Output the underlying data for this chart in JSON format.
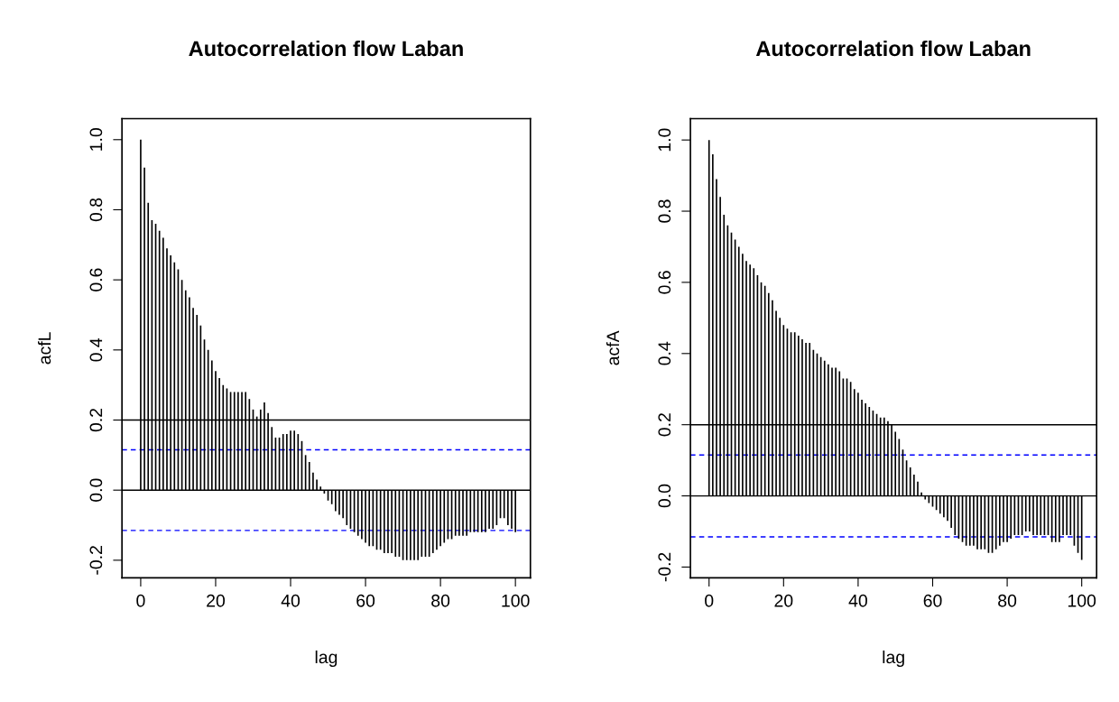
{
  "chart_data": [
    {
      "type": "bar",
      "title": "Autocorrelation flow Laban",
      "xlabel": "lag",
      "ylabel": "acfL",
      "x": [
        0,
        1,
        2,
        3,
        4,
        5,
        6,
        7,
        8,
        9,
        10,
        11,
        12,
        13,
        14,
        15,
        16,
        17,
        18,
        19,
        20,
        21,
        22,
        23,
        24,
        25,
        26,
        27,
        28,
        29,
        30,
        31,
        32,
        33,
        34,
        35,
        36,
        37,
        38,
        39,
        40,
        41,
        42,
        43,
        44,
        45,
        46,
        47,
        48,
        49,
        50,
        51,
        52,
        53,
        54,
        55,
        56,
        57,
        58,
        59,
        60,
        61,
        62,
        63,
        64,
        65,
        66,
        67,
        68,
        69,
        70,
        71,
        72,
        73,
        74,
        75,
        76,
        77,
        78,
        79,
        80,
        81,
        82,
        83,
        84,
        85,
        86,
        87,
        88,
        89,
        90,
        91,
        92,
        93,
        94,
        95,
        96,
        97,
        98,
        99,
        100
      ],
      "series": [
        {
          "color": "#000000",
          "values": [
            1.0,
            0.92,
            0.82,
            0.77,
            0.76,
            0.74,
            0.72,
            0.69,
            0.67,
            0.65,
            0.63,
            0.6,
            0.57,
            0.55,
            0.52,
            0.5,
            0.47,
            0.43,
            0.4,
            0.37,
            0.34,
            0.32,
            0.3,
            0.29,
            0.28,
            0.28,
            0.28,
            0.28,
            0.28,
            0.26,
            0.23,
            0.21,
            0.23,
            0.25,
            0.22,
            0.18,
            0.15,
            0.15,
            0.16,
            0.16,
            0.17,
            0.17,
            0.16,
            0.14,
            0.1,
            0.08,
            0.05,
            0.03,
            0.01,
            -0.01,
            -0.03,
            -0.04,
            -0.06,
            -0.07,
            -0.08,
            -0.1,
            -0.11,
            -0.12,
            -0.13,
            -0.14,
            -0.15,
            -0.16,
            -0.16,
            -0.17,
            -0.17,
            -0.18,
            -0.18,
            -0.18,
            -0.19,
            -0.19,
            -0.2,
            -0.2,
            -0.2,
            -0.2,
            -0.2,
            -0.19,
            -0.19,
            -0.19,
            -0.18,
            -0.17,
            -0.16,
            -0.15,
            -0.14,
            -0.14,
            -0.13,
            -0.13,
            -0.13,
            -0.13,
            -0.12,
            -0.12,
            -0.12,
            -0.12,
            -0.12,
            -0.11,
            -0.11,
            -0.1,
            -0.08,
            -0.08,
            -0.1,
            -0.11,
            -0.12
          ]
        }
      ],
      "xlim": [
        -5,
        104
      ],
      "ylim": [
        -0.25,
        1.06
      ],
      "xticks": [
        0,
        20,
        40,
        60,
        80,
        100
      ],
      "yticks": [
        {
          "value": -0.2,
          "label": "-0.2"
        },
        {
          "value": 0,
          "label": "0.0"
        },
        {
          "value": 0.2,
          "label": "0.2"
        },
        {
          "value": 0.4,
          "label": "0.4"
        },
        {
          "value": 0.6,
          "label": "0.6"
        },
        {
          "value": 0.8,
          "label": "0.8"
        },
        {
          "value": 1.0,
          "label": "1.0"
        }
      ],
      "ref_lines": [
        {
          "axis": "y",
          "value": 0,
          "color": "#000000",
          "line_style": "solid"
        },
        {
          "axis": "y",
          "value": 0.2,
          "color": "#000000",
          "line_style": "solid"
        },
        {
          "axis": "y",
          "value": 0.115,
          "color": "#0000ff",
          "line_style": "dashed"
        },
        {
          "axis": "y",
          "value": -0.115,
          "color": "#0000ff",
          "line_style": "dashed"
        }
      ],
      "grid": false,
      "legend": false
    },
    {
      "type": "bar",
      "title": "Autocorrelation flow Laban",
      "xlabel": "lag",
      "ylabel": "acfA",
      "x": [
        0,
        1,
        2,
        3,
        4,
        5,
        6,
        7,
        8,
        9,
        10,
        11,
        12,
        13,
        14,
        15,
        16,
        17,
        18,
        19,
        20,
        21,
        22,
        23,
        24,
        25,
        26,
        27,
        28,
        29,
        30,
        31,
        32,
        33,
        34,
        35,
        36,
        37,
        38,
        39,
        40,
        41,
        42,
        43,
        44,
        45,
        46,
        47,
        48,
        49,
        50,
        51,
        52,
        53,
        54,
        55,
        56,
        57,
        58,
        59,
        60,
        61,
        62,
        63,
        64,
        65,
        66,
        67,
        68,
        69,
        70,
        71,
        72,
        73,
        74,
        75,
        76,
        77,
        78,
        79,
        80,
        81,
        82,
        83,
        84,
        85,
        86,
        87,
        88,
        89,
        90,
        91,
        92,
        93,
        94,
        95,
        96,
        97,
        98,
        99,
        100
      ],
      "series": [
        {
          "color": "#000000",
          "values": [
            1.0,
            0.96,
            0.89,
            0.84,
            0.79,
            0.76,
            0.74,
            0.72,
            0.7,
            0.68,
            0.66,
            0.65,
            0.64,
            0.62,
            0.6,
            0.59,
            0.57,
            0.55,
            0.52,
            0.5,
            0.48,
            0.47,
            0.46,
            0.46,
            0.45,
            0.44,
            0.43,
            0.43,
            0.41,
            0.4,
            0.39,
            0.38,
            0.37,
            0.36,
            0.36,
            0.35,
            0.33,
            0.33,
            0.32,
            0.3,
            0.29,
            0.27,
            0.26,
            0.25,
            0.24,
            0.23,
            0.22,
            0.22,
            0.21,
            0.2,
            0.18,
            0.16,
            0.13,
            0.1,
            0.08,
            0.06,
            0.04,
            0.01,
            -0.01,
            -0.02,
            -0.03,
            -0.04,
            -0.05,
            -0.06,
            -0.07,
            -0.09,
            -0.11,
            -0.12,
            -0.13,
            -0.14,
            -0.14,
            -0.14,
            -0.15,
            -0.15,
            -0.15,
            -0.16,
            -0.16,
            -0.15,
            -0.14,
            -0.13,
            -0.13,
            -0.12,
            -0.11,
            -0.11,
            -0.11,
            -0.1,
            -0.1,
            -0.11,
            -0.11,
            -0.11,
            -0.11,
            -0.11,
            -0.13,
            -0.13,
            -0.13,
            -0.11,
            -0.11,
            -0.11,
            -0.14,
            -0.16,
            -0.18
          ]
        }
      ],
      "xlim": [
        -5,
        104
      ],
      "ylim": [
        -0.23,
        1.06
      ],
      "xticks": [
        0,
        20,
        40,
        60,
        80,
        100
      ],
      "yticks": [
        {
          "value": -0.2,
          "label": "-0.2"
        },
        {
          "value": 0,
          "label": "0.0"
        },
        {
          "value": 0.2,
          "label": "0.2"
        },
        {
          "value": 0.4,
          "label": "0.4"
        },
        {
          "value": 0.6,
          "label": "0.6"
        },
        {
          "value": 0.8,
          "label": "0.8"
        },
        {
          "value": 1.0,
          "label": "1.0"
        }
      ],
      "ref_lines": [
        {
          "axis": "y",
          "value": 0,
          "color": "#000000",
          "line_style": "solid"
        },
        {
          "axis": "y",
          "value": 0.2,
          "color": "#000000",
          "line_style": "solid"
        },
        {
          "axis": "y",
          "value": 0.115,
          "color": "#0000ff",
          "line_style": "dashed"
        },
        {
          "axis": "y",
          "value": -0.115,
          "color": "#0000ff",
          "line_style": "dashed"
        }
      ],
      "grid": false,
      "legend": false
    }
  ]
}
